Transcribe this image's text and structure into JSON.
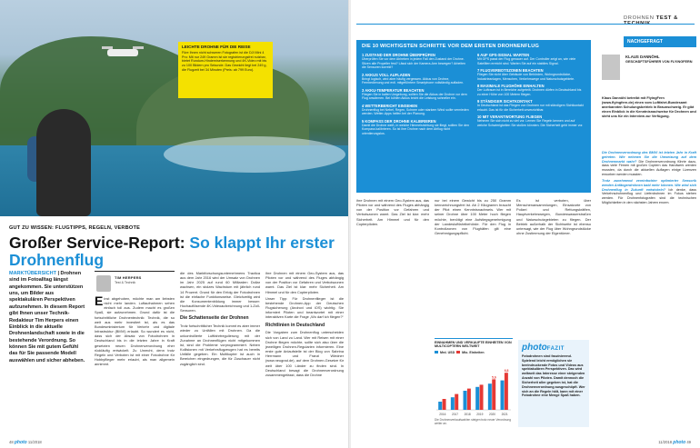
{
  "left": {
    "photo_credit": "Fotos: Shutterstock, Adobe Stock, iStock, Hersteller",
    "yellow_box": {
      "title": "LEICHTE DROHNE FÜR DIE REISE",
      "text": "Füre Ihnen nicht schweren Fotografen ist die DJI Mini 4 Pro: Mit nur 249 Gramm ist sie registrierungsfrei nutzbar, bietet Rundum-Hinderniserkennung und 4K-Video mit bis zu 100 Bildern pro Sekunde. Das Gewicht liegt bei 249 g, die Flugzeit bei 34 Minuten (Preis: ab 799 Euro)."
    },
    "kicker": "GUT ZU WISSEN: FLUGTIPPS, REGELN, VERBOTE",
    "headline": "Großer Service-Report: ",
    "headline_accent": "So klappt Ihr erster Drohnenflug",
    "teaser_label": "MARKTÜBERSICHT",
    "teaser_text": " | Drohnen sind im Fotoalltag längst angekommen. Sie unterstützen uns, um Bilder aus spektakulären Perspektiven aufzunehmen. In diesem Report gibt Ihnen unser Technik-Redakteur Tim Herpers einen Einblick in die aktuelle Drohnenlandschaft sowie in die bestehende Verordnung. So können Sie mit gutem Gefühl das für Sie passende Modell auswählen und sicher abheben.",
    "author_name": "TIM HERPERS",
    "author_role": "Test & Technik",
    "dropcap": "E",
    "col1": "inst abgehoben, möchte man am liebsten nicht mehr landen. Luftaufnahmen sehen einfach toll aus. Zudem macht es großen Spaß, sie aufzunehmen. Grund dafür ist die fortschrittliche Drohnentechnik: Technik, die so weit aus mehr investiert ist, als es das Bundesministerium für Verkehr und digitale Infrastruktur (BMVI) erlaubt. So wundert es nicht, dass sich der Absatz von Fotodrohnen in Deutschland bis in die letzten Jahre in Kraft gesetzten neuen Drohnenverordnung eher rückläufig entwickelt. Zu Unrecht, denn trotz Regeln und Verboten ist mit einer Fotodrohne für Hobbyflieger mehr erlaubt, als man allgemein annimmt.",
    "col2_a": "die des Marktforschungsunternehmens Tractica aus dem Jahr 2016 wird der Umsatz von Drohnen im Jahr 2025 auf rund 60 Milliarden Dollar wachsen, ein stolzes Wachstum mit jährlich rund 14 Prozent. Grund für den Erfolg der Fotodrohnen ist die einfache Funktionsweise. Gleichzeitig wird die Konsumentenbildung immer besser: Hochauflösende 4K-Videoaufzeichnung und 1-Zoll-Sensoren.",
    "col2_sub": "Die Schattenseite der Drohnen",
    "col2_b": "Trotz fortschrittlicher Technik kommt es aber immer wieder zu Unfällen mit Drohnen. Da die unkontrollierte Luftfahrtregulierung mit der Zunahme an Drohnenflügen nicht mitgekommen ist, sind die Probleme vorprogrammiert. Neben Kollisionen mit Verkehrsflugzeugen hat es bereits Unfälle gegeben. Ein Multikopter ist auch in Bereichen eingedrungen, die für Zuschauer nicht zugänglich sind.",
    "col3_a": "ihre Drohnen mit einem Geo-System aus, das Piloten vor und während des Fluges abhängig von der Position vor Gefahren und Verbotszonen warnt. Das Ziel ist klar: mehr Sicherheit. Am Himmel und für den Copterpiloten.",
    "col3_b": "Unser Tipp: Für Drohnenflieger ist die bestehende Drohnen-App der Deutschen Flugsicherung (Androvi und iOS) wichtig. Sie informiert Piloten und beantwortet mit einer interaktiven Karte die Frage „Wo darf ich fliegen?“",
    "col3_sub": "Richtlinien in Deutschland",
    "col3_c": "Die Vorgaben zum Drohnenflug unterscheiden sich von Land zu Land. Wer mit Reisen mit einer Drohne fliegen möchte, sollte sich also über die jeweiligen Drohnen-Regularien informieren. Eine erste gute Anlaufstelle ist der Blog von Sabrina Herrmann und Franzi Wiedner (www.neugrad.de), auf dem Drohnen-Gesetze für weit über 100 Länder zu finden sind. In Deutschland besagt die Drohnenverordnung zusammengefasst, dass die Drohne",
    "footer_page": "48",
    "footer_brand": "photo",
    "footer_issue": "11/2018"
  },
  "right": {
    "header_light": "DROHNEN ",
    "header_bold": "TEST & TECHNIK",
    "steps_title": "DIE 10 WICHTIGSTEN SCHRITTE VOR DEM ERSTEN DROHNENFLUG",
    "steps": [
      {
        "t": "1 ZUSTAND DER DROHNE ÜBERPRÜFEN",
        "d": "Überprüfen Sie vor dem Abheben in jedem Fall den Zustand der Drohne. Sitzen alle Propeller fest? Lässt sich der Kamera-Arm bewegen? Arbeiten die Sensoren korrekt?"
      },
      {
        "t": "2 AKKUS VOLL AUFLADEN",
        "d": "Bringt logisch, wird aber häufig vergessen. Akkus von Drohne, Fernbedienung und evtl. mitgeführtem Smartphone vollständig aufladen."
      },
      {
        "t": "3 AKKU-TEMPERATUR BEACHTEN",
        "d": "Fliegen Sie in kalten Umgebung, sollten Sie die Akkus der Drohne vor dem Flug anwärmen. Bei kühlen Akkus bricht die Leistung schneller ein."
      },
      {
        "t": "4 WETTERBERICHT EINSEHEN",
        "d": "Drohnenflug bei Nebel, Regen, Schnee oder starkem Wind sollte vermieden werden. Wetter-Apps helfen bei der Planung."
      },
      {
        "t": "5 KOMPASS DER DROHNE KALIBRIEREN",
        "d": "Damit die Drohne weiß, in welche Himmelsrichtung sie fliegt, sollten Sie den Kompass kalibrieren. So ist ihre Drohne nach dem Abflug nicht orientierungslos."
      },
      {
        "t": "6 AUF GPS-SIGNAL WARTEN",
        "d": "Mit GPS passt der Flug genauer auf. Der Controller zeigt an, wie viele Satelliten erreicht sind. Warten Sie auf ein stabiles Signal."
      },
      {
        "t": "7 FLUGVERBOTSZONEN BEACHTEN",
        "d": "Fliegen Sie nicht über Gebäude von Behörden, Wohngrundstücke, Industrieanlagen, Menschen, Verkehrswege und Naturschutzgebiete."
      },
      {
        "t": "8 MAXIMALE FLUGHÖHE EINHALTEN",
        "d": "Der Luftraum ist in Bereiche aufgeteilt. Drohnen dürfen in Deutschland bis zu einer Höhe von 100 Metern fliegen."
      },
      {
        "t": "9 STÄNDIGER SICHTKONTAKT",
        "d": "In Deutschland ist das Fliegen von Drohnen nur mit ständigem Sichtkontakt erlaubt. Das ist für die Sicherheit unverzichtbar."
      },
      {
        "t": "10 MIT VERANTWORTUNG FLIEGEN",
        "d": "Nehmen Sie sich nicht zu viel vor. Lernen Sie Regeln kennen und auf welche Schwierigkeiten Sie stoßen könnten. Die Sicherheit geht immer vor."
      }
    ],
    "nachgefragt_tag": "NACHGEFRAGT",
    "interviewee_name": "KLAUS DANNÖHL",
    "interviewee_role": "GESCHÄFTSFÜHRER VON FLYINGFERN",
    "interviewee_org": "",
    "intro": "Klaus Dannöhl betreibt mit FlyingFern (www.flyingfern.de) einen vom Luftfahrt-Bundesamt anerkannten Schulungsbetrieb in Braunschweig. Er gibt einen Einblick in die Kenntnisnachweise für Drohnen und steht uns für ein Interview zur Verfügung.",
    "qa": [
      {
        "q": "Die Drohnenverordnung des BMVI ist letzten Jahr in Kraft getreten. Wie nehmen Sie die Umsetzung auf dem Drohnenmarkt wahr?",
        "a": "Die Drohnenverordnung führte dazu, dass viele Firmen mit großen Coptern das Handwerk werden mussten, da durch die aktuellen Auflagen einige Lizenzen erworben werden mussten."
      },
      {
        "q": "Trotz zunehmend vereinfachter optimierter Sensorik werden Anfängerdrohnen bald mehr können. Wie wird sich Drohnenflug in Zukunft entwickeln?",
        "a": "Ich denke, dass Verkehrsdrohnenflug und Lieferdrohnen im Fokus stehen werden. Für Drohnenfotografen sind die technischen Möglichkeiten in den nächsten Jahren enorm."
      }
    ],
    "rcol1": "ihre Drohnen mit einem Geo-System aus, das Piloten vor und während des Fluges abhängig von der Position vor Gefahren und Verbotszonen warnt. Das Ziel ist klar: mehr Sicherheit. Am Himmel und für den Copterpiloten.",
    "rcol2": "nur bei einem Gewicht bis zu 250 Gramm kennzeichnungsfrei ist. Ab 2 Kilogramm braucht der Pilot einen Kenntnisnachweis. Wer mit seiner Drohne über 100 Meter hoch fliegen möchte, benötigt eine Aufstiegsgenehmigung der Landesluftfahrtbehörde. Für den Flug in Kontrollzonen von Flughäfen gilt eine Genehmigungspflicht.",
    "rcol3": "Es ist verboten, über Menschenansammlungen, Einsatzorte von Polizei und Rettungskräften, Hauptverkehrswegen, Bundeswasserstraßen und Naturschutzgebieten zu fliegen. Der Betrieb außerhalb der Sichtweite ist ebenso untersagt, wie der Flug über Wohngrundstücke ohne Zustimmung der Eigentümer.",
    "chart_note": "Die Drohnenverkaufszahlen steigen trotz neuer Verordnung weiter an.",
    "fazit_logo": "photo",
    "fazit_tag": "FAZIT",
    "fazit_text": "Fotodrohnen sind faszinierend. Spielend leicht ermöglichen sie beeindruckende Fotos und Videos aus spektakulären Perspektiven. Das wird weltweit das Interesse einer steigenden Anzahl von Piloten. Damit dennoch die Sicherheit aller gegeben ist, hat die Drohnenverordnung ausgeschöpft. Wer sich an die Regeln hält, kann mit einer Fotodrohne eine Menge Spaß haben.",
    "rcol4": "",
    "footer_issue": "11/2018",
    "footer_brand": "photo",
    "footer_page": "49"
  },
  "chart_data": {
    "type": "bar",
    "title": "EINNAHMEN UND VERKAUFTE EINHEITEN VON MULTICOPTERN WELTWEIT",
    "series": [
      {
        "name": "Mrd. USD",
        "color": "#1b8fd6",
        "values": [
          1.5,
          2.3,
          3.5,
          4.2,
          4.8,
          5.4
        ]
      },
      {
        "name": "Mio. Einheiten",
        "color": "#e53935",
        "values": [
          2.0,
          2.9,
          3.9,
          4.6,
          5.6,
          6.8
        ]
      }
    ],
    "categories": [
      "2016",
      "2017",
      "2018",
      "2019",
      "2020",
      "2021"
    ],
    "labels": [
      "",
      "",
      "",
      "",
      "5,6",
      "6,8"
    ],
    "ylim": [
      0,
      8
    ]
  }
}
